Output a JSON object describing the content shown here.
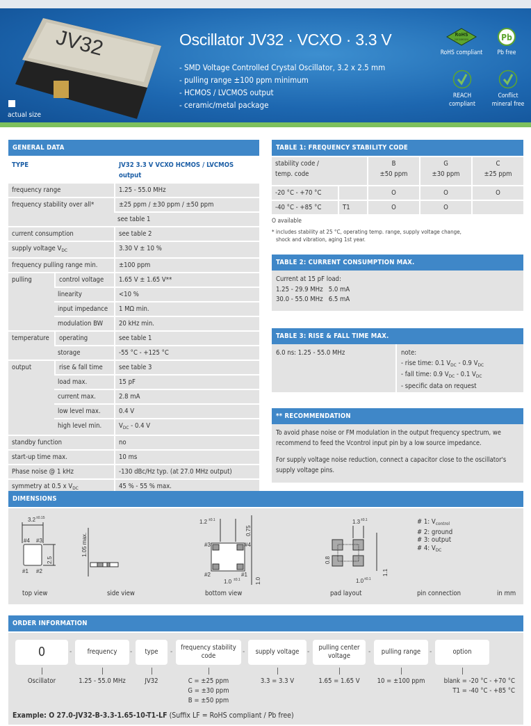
{
  "header": {
    "title": "Oscillator JV32 · VCXO · 3.3 V",
    "chip_marking": "JV32",
    "actual_size": "actual size",
    "bullets": [
      "- SMD Voltage Controlled Crystal Oscillator, 3.2 x 2.5 mm",
      "- pulling range ±100 ppm minimum",
      "- HCMOS / LVCMOS output",
      "- ceramic/metal package"
    ],
    "badges": {
      "rohs": "RoHS compliant",
      "rohs_logo": "RoHS",
      "rohs_logo_sub": "2015/863/EU",
      "pb": "Pb free",
      "pb_logo": "Pb",
      "reach": "REACH compliant",
      "conflict": "Conflict mineral free"
    },
    "colors": {
      "accent": "#3f87c8",
      "green": "#7dc05d",
      "cell": "#e3e3e3"
    }
  },
  "general": {
    "title": "GENERAL DATA",
    "type_label": "TYPE",
    "type_value": "JV32 3.3 V VCXO HCMOS / LVCMOS output",
    "rows": [
      {
        "g": "frequency range",
        "v": [
          "1.25 - 55.0 MHz"
        ]
      },
      {
        "g": "frequency stability over all*",
        "v": [
          "±25 ppm / ±30 ppm / ±50 ppm"
        ],
        "span": 2
      },
      {
        "v": [
          "see table 1"
        ]
      },
      {
        "g": "current consumption",
        "v": [
          "see table 2"
        ]
      },
      {
        "g": "supply voltage V",
        "gsub": "DC",
        "v": [
          "3.30 V ± 10 %"
        ]
      },
      {
        "g": "frequency pulling range min.",
        "v": [
          "±100 ppm"
        ]
      },
      {
        "g": "pulling",
        "s": "control voltage",
        "v": [
          "1.65 V ± 1.65 V**"
        ],
        "span": 4
      },
      {
        "s": "linearity",
        "v": [
          "<10 %"
        ]
      },
      {
        "s": "input impedance",
        "v": [
          "1 MΩ min."
        ]
      },
      {
        "s": "modulation BW",
        "v": [
          "20 kHz min."
        ]
      },
      {
        "g": "temperature",
        "s": "operating",
        "v": [
          "see table 1"
        ],
        "span": 2
      },
      {
        "s": "storage",
        "v": [
          "-55 °C - +125 °C"
        ]
      },
      {
        "g": "output",
        "s": "rise & fall time",
        "v": [
          "see table 3"
        ],
        "span": 5
      },
      {
        "s": "load max.",
        "v": [
          "15 pF"
        ]
      },
      {
        "s": "current max.",
        "v": [
          "2.8 mA"
        ]
      },
      {
        "s": "low level max.",
        "v": [
          "0.4 V"
        ]
      },
      {
        "s": "high level min.",
        "v": [
          "V",
          "DC",
          " - 0.4 V"
        ]
      },
      {
        "g": "standby function",
        "v": [
          "no"
        ]
      },
      {
        "g": "start-up time max.",
        "v": [
          "10 ms"
        ]
      },
      {
        "g": "Phase noise @ 1 kHz",
        "v": [
          "-130 dBc/Hz typ. (at 27.0 MHz output)"
        ]
      },
      {
        "g": "symmetry at 0.5 x V",
        "gsub": "DC",
        "v": [
          "45 % - 55 % max."
        ]
      }
    ]
  },
  "table1": {
    "title": "TABLE 1: FREQUENCY STABILITY CODE",
    "head_l1": "stability code /",
    "head_l2": "temp. code",
    "cols": [
      {
        "code": "B",
        "ppm": "±50 ppm"
      },
      {
        "code": "G",
        "ppm": "±30 ppm"
      },
      {
        "code": "C",
        "ppm": "±25 ppm"
      }
    ],
    "rows": [
      {
        "temp": "-20 °C - +70 °C",
        "code": "",
        "marks": [
          "O",
          "O",
          "O"
        ]
      },
      {
        "temp": "-40 °C - +85 °C",
        "code": "T1",
        "marks": [
          "O",
          "O",
          ""
        ]
      }
    ],
    "legend": "O available",
    "footnote_1": "* includes stability at 25 °C, operating temp. range, supply voltage change,",
    "footnote_2": "shock and vibration, aging 1st year."
  },
  "table2": {
    "title": "TABLE 2: CURRENT CONSUMPTION MAX.",
    "intro": "Current at 15 pF load:",
    "lines": [
      "1.25 - 29.9 MHz   5.0 mA",
      "30.0 - 55.0 MHz   6.5 mA"
    ]
  },
  "table3": {
    "title": "TABLE 3: RISE & FALL TIME MAX.",
    "value": "6.0 ns:  1.25 - 55.0 MHz",
    "note": "note:",
    "rise": "- rise time: 0.1 V",
    "fall": "- fall time: 0.9 V",
    "sub": "DC",
    "rise_mid": " - 0.9 V",
    "fall_mid": " - 0.1 V",
    "specific": "- specific data on request"
  },
  "recommendation": {
    "title": "** RECOMMENDATION",
    "p1": "To avoid phase noise or FM modulation in the output frequency spectrum, we recommend to feed the Vcontrol input pin by a low source impedance.",
    "p2": "For supply voltage noise reduction, connect a capacitor close to the oscillator's supply voltage pins."
  },
  "dimensions": {
    "title": "DIMENSIONS",
    "labels": [
      "top view",
      "side view",
      "bottom view",
      "pad layout",
      "pin connection",
      "in mm"
    ],
    "top": {
      "w": "3.2",
      "wt": "±0.15",
      "h": "2.5",
      "ht": "±0.15",
      "p1": "#1",
      "p2": "#2",
      "p3": "#3",
      "p4": "#4"
    },
    "side": {
      "h": "1.05 max."
    },
    "bottom": {
      "a": "1.2",
      "at": "±0.1",
      "b": "0.75",
      "bt": "±0.1",
      "c": "1.0",
      "ct": "±0.1",
      "d": "1.0",
      "dt": "±0.1"
    },
    "pad": {
      "a": "1.3",
      "at": "±0.1",
      "b": "0.8",
      "bt": "±0.1",
      "c": "1.1",
      "ct": "±0.1",
      "d": "1.0",
      "dt": "±0.1"
    },
    "pins": [
      {
        "t": "# 1: V",
        "s": "control"
      },
      {
        "t": "# 2: ground",
        "s": ""
      },
      {
        "t": "# 3: output",
        "s": ""
      },
      {
        "t": "# 4: V",
        "s": "DC"
      }
    ]
  },
  "order": {
    "title": "ORDER INFORMATION",
    "fields": [
      {
        "box": "0",
        "val": [
          "Oscillator"
        ]
      },
      {
        "box": "frequency",
        "val": [
          "1.25 - 55.0 MHz"
        ]
      },
      {
        "box": "type",
        "val": [
          "JV32"
        ]
      },
      {
        "box": "frequency stability code",
        "val": [
          "C = ±25 ppm",
          "G = ±30 ppm",
          "B = ±50 ppm"
        ]
      },
      {
        "box": "supply voltage",
        "val": [
          "3.3 = 3.3 V"
        ]
      },
      {
        "box": "pulling center voltage",
        "val": [
          "1.65 = 1.65 V"
        ]
      },
      {
        "box": "pulling range",
        "val": [
          "10 = ±100 ppm"
        ]
      },
      {
        "box": "option",
        "val": [
          "blank = -20 °C - +70 °C",
          "T1 = -40 °C - +85 °C"
        ]
      }
    ],
    "example_label": "Example: O 27.0-JV32-B-3.3-1.65-10-T1-LF",
    "example_note": "(Suffix LF = RoHS compliant / Pb free)"
  }
}
